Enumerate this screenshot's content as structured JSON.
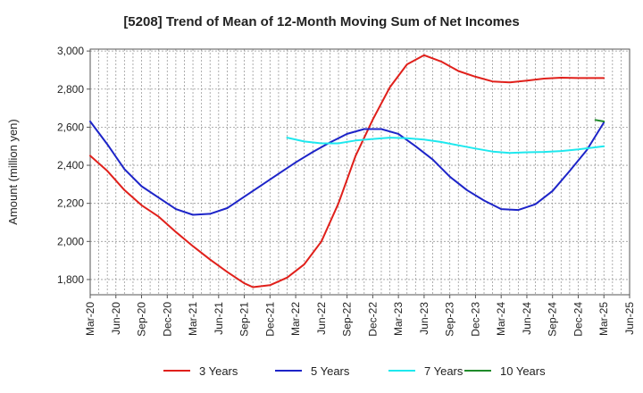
{
  "chart_data": {
    "type": "line",
    "title": "[5208]  Trend of Mean of 12-Month Moving Sum of Net Incomes",
    "ylabel": "Amount (million yen)",
    "xlabel": "",
    "ylim": [
      1720,
      3010
    ],
    "yticks": [
      1800,
      2000,
      2200,
      2400,
      2600,
      2800,
      3000
    ],
    "ytick_labels": [
      "1,800",
      "2,000",
      "2,200",
      "2,400",
      "2,600",
      "2,800",
      "3,000"
    ],
    "x_start": "2020-03",
    "x_end": "2025-06",
    "xticks": [
      "2020-03",
      "2020-06",
      "2020-09",
      "2020-12",
      "2021-03",
      "2021-06",
      "2021-09",
      "2021-12",
      "2022-03",
      "2022-06",
      "2022-09",
      "2022-12",
      "2023-03",
      "2023-06",
      "2023-09",
      "2023-12",
      "2024-03",
      "2024-06",
      "2024-09",
      "2024-12",
      "2025-03",
      "2025-06"
    ],
    "xtick_labels": [
      "Mar-20",
      "Jun-20",
      "Sep-20",
      "Dec-20",
      "Mar-21",
      "Jun-21",
      "Sep-21",
      "Dec-21",
      "Mar-22",
      "Jun-22",
      "Sep-22",
      "Dec-22",
      "Mar-23",
      "Jun-23",
      "Sep-23",
      "Dec-23",
      "Mar-24",
      "Jun-24",
      "Sep-24",
      "Dec-24",
      "Mar-25",
      "Jun-25"
    ],
    "grid": true,
    "legend_position": "bottom",
    "series": [
      {
        "name": "3 Years",
        "color": "#e0201b",
        "points": [
          [
            "2020-03",
            2450
          ],
          [
            "2020-05",
            2370
          ],
          [
            "2020-07",
            2270
          ],
          [
            "2020-09",
            2190
          ],
          [
            "2020-11",
            2130
          ],
          [
            "2021-01",
            2050
          ],
          [
            "2021-03",
            1975
          ],
          [
            "2021-05",
            1905
          ],
          [
            "2021-07",
            1840
          ],
          [
            "2021-09",
            1780
          ],
          [
            "2021-10",
            1760
          ],
          [
            "2021-12",
            1770
          ],
          [
            "2022-02",
            1810
          ],
          [
            "2022-04",
            1880
          ],
          [
            "2022-06",
            2000
          ],
          [
            "2022-08",
            2200
          ],
          [
            "2022-10",
            2450
          ],
          [
            "2022-12",
            2640
          ],
          [
            "2023-02",
            2810
          ],
          [
            "2023-04",
            2930
          ],
          [
            "2023-06",
            2978
          ],
          [
            "2023-08",
            2945
          ],
          [
            "2023-10",
            2895
          ],
          [
            "2023-12",
            2865
          ],
          [
            "2024-02",
            2840
          ],
          [
            "2024-04",
            2835
          ],
          [
            "2024-06",
            2845
          ],
          [
            "2024-08",
            2855
          ],
          [
            "2024-10",
            2860
          ],
          [
            "2024-12",
            2858
          ],
          [
            "2025-03",
            2858
          ]
        ]
      },
      {
        "name": "5 Years",
        "color": "#1d24c8",
        "points": [
          [
            "2020-03",
            2630
          ],
          [
            "2020-05",
            2510
          ],
          [
            "2020-07",
            2380
          ],
          [
            "2020-09",
            2290
          ],
          [
            "2020-11",
            2230
          ],
          [
            "2021-01",
            2170
          ],
          [
            "2021-03",
            2140
          ],
          [
            "2021-05",
            2145
          ],
          [
            "2021-07",
            2175
          ],
          [
            "2021-09",
            2235
          ],
          [
            "2021-11",
            2295
          ],
          [
            "2022-01",
            2355
          ],
          [
            "2022-03",
            2415
          ],
          [
            "2022-05",
            2470
          ],
          [
            "2022-07",
            2520
          ],
          [
            "2022-09",
            2565
          ],
          [
            "2022-11",
            2590
          ],
          [
            "2023-01",
            2590
          ],
          [
            "2023-03",
            2565
          ],
          [
            "2023-05",
            2500
          ],
          [
            "2023-07",
            2430
          ],
          [
            "2023-09",
            2340
          ],
          [
            "2023-11",
            2270
          ],
          [
            "2024-01",
            2215
          ],
          [
            "2024-03",
            2170
          ],
          [
            "2024-05",
            2165
          ],
          [
            "2024-07",
            2195
          ],
          [
            "2024-09",
            2265
          ],
          [
            "2024-11",
            2370
          ],
          [
            "2025-01",
            2480
          ],
          [
            "2025-03",
            2625
          ]
        ]
      },
      {
        "name": "7 Years",
        "color": "#1ee8ee",
        "points": [
          [
            "2022-02",
            2545
          ],
          [
            "2022-04",
            2525
          ],
          [
            "2022-06",
            2515
          ],
          [
            "2022-08",
            2515
          ],
          [
            "2022-10",
            2530
          ],
          [
            "2022-12",
            2538
          ],
          [
            "2023-02",
            2545
          ],
          [
            "2023-04",
            2542
          ],
          [
            "2023-06",
            2535
          ],
          [
            "2023-08",
            2522
          ],
          [
            "2023-10",
            2505
          ],
          [
            "2023-12",
            2488
          ],
          [
            "2024-02",
            2472
          ],
          [
            "2024-04",
            2465
          ],
          [
            "2024-06",
            2468
          ],
          [
            "2024-08",
            2470
          ],
          [
            "2024-10",
            2475
          ],
          [
            "2024-12",
            2483
          ],
          [
            "2025-03",
            2500
          ]
        ]
      },
      {
        "name": "10 Years",
        "color": "#1f8a2a",
        "points": [
          [
            "2025-02",
            2638
          ],
          [
            "2025-03",
            2630
          ]
        ]
      }
    ]
  }
}
